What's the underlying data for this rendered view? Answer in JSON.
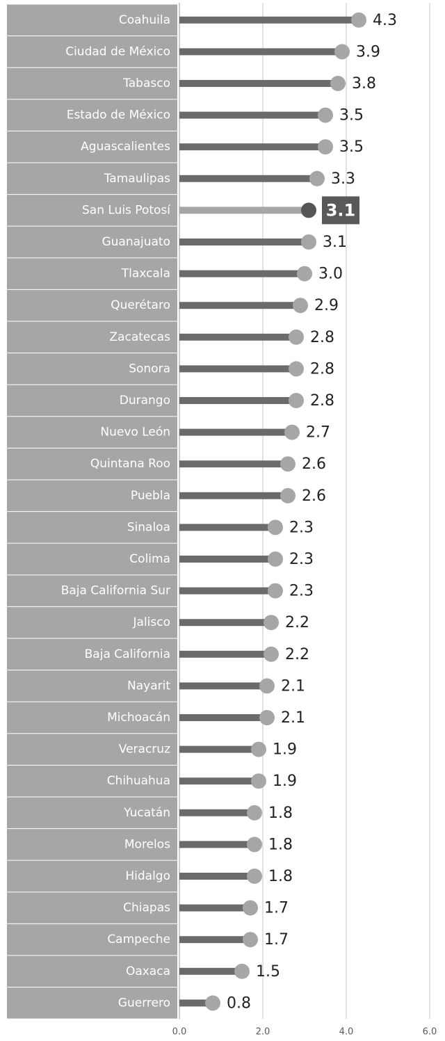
{
  "chart_data": {
    "type": "lollipop",
    "categories": [
      "Coahuila",
      "Ciudad de México",
      "Tabasco",
      "Estado de México",
      "Aguascalientes",
      "Tamaulipas",
      "San Luis Potosí",
      "Guanajuato",
      "Tlaxcala",
      "Querétaro",
      "Zacatecas",
      "Sonora",
      "Durango",
      "Nuevo León",
      "Quintana Roo",
      "Puebla",
      "Sinaloa",
      "Colima",
      "Baja California Sur",
      "Jalisco",
      "Baja California",
      "Nayarit",
      "Michoacán",
      "Veracruz",
      "Chihuahua",
      "Yucatán",
      "Morelos",
      "Hidalgo",
      "Chiapas",
      "Campeche",
      "Oaxaca",
      "Guerrero"
    ],
    "values": [
      4.3,
      3.9,
      3.8,
      3.5,
      3.5,
      3.3,
      3.1,
      3.1,
      3.0,
      2.9,
      2.8,
      2.8,
      2.8,
      2.7,
      2.6,
      2.6,
      2.3,
      2.3,
      2.3,
      2.2,
      2.2,
      2.1,
      2.1,
      1.9,
      1.9,
      1.8,
      1.8,
      1.8,
      1.7,
      1.7,
      1.5,
      0.8
    ],
    "value_labels": [
      "4.3",
      "3.9",
      "3.8",
      "3.5",
      "3.5",
      "3.3",
      "3.1",
      "3.1",
      "3.0",
      "2.9",
      "2.8",
      "2.8",
      "2.8",
      "2.7",
      "2.6",
      "2.6",
      "2.3",
      "2.3",
      "2.3",
      "2.2",
      "2.2",
      "2.1",
      "2.1",
      "1.9",
      "1.9",
      "1.8",
      "1.8",
      "1.8",
      "1.7",
      "1.7",
      "1.5",
      "0.8"
    ],
    "color": "#6b6b6b",
    "dot_color": "#a6a6a6",
    "highlight": 6,
    "highlight_color": "#a6a6a6",
    "highlight_dot_color": "#555555",
    "xlim": [
      0,
      6
    ],
    "xticks": [
      {
        "value": 0,
        "label": "0.0"
      },
      {
        "value": 2,
        "label": "2.0"
      },
      {
        "value": 4,
        "label": "4.0"
      },
      {
        "value": 6,
        "label": "6.0"
      }
    ],
    "grid": true
  }
}
